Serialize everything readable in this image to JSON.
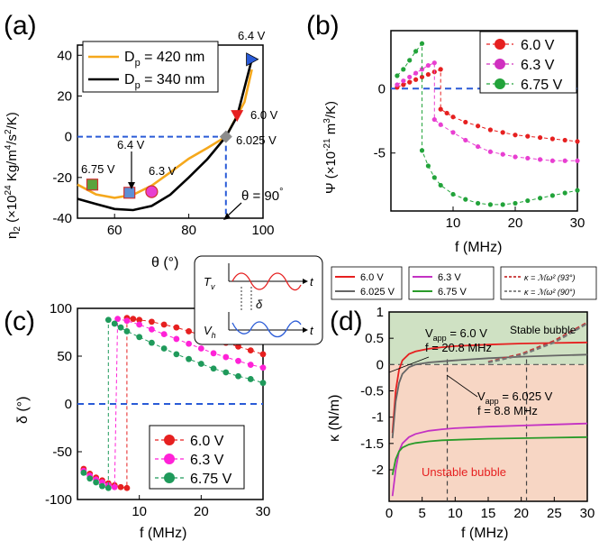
{
  "chart_data": [
    {
      "panel": "(a)",
      "type": "line",
      "xlabel": "θ (°)",
      "ylabel": "η₂ (×10²⁴ Kg/m⁴/s²/K)",
      "xlim": [
        50,
        100
      ],
      "ylim": [
        -40,
        45
      ],
      "xticks": [
        60,
        80,
        100
      ],
      "yticks": [
        -40,
        -20,
        0,
        20,
        40
      ],
      "series": [
        {
          "name": "Dp = 420 nm",
          "color": "#f5a81c",
          "x": [
            50,
            55,
            60,
            65,
            70,
            75,
            80,
            85,
            90,
            95,
            97
          ],
          "y": [
            -23.5,
            -28.3,
            -30.0,
            -28.5,
            -24.0,
            -17.5,
            -10.8,
            -5.5,
            0,
            17,
            33
          ]
        },
        {
          "name": "Dp = 340 nm",
          "color": "#000000",
          "x": [
            50,
            55,
            60,
            65,
            70,
            75,
            80,
            85,
            90,
            93,
            97
          ],
          "y": [
            -30.5,
            -33.0,
            -35.5,
            -36.0,
            -34.0,
            -28.5,
            -20.0,
            -11.0,
            0,
            10,
            38
          ]
        }
      ],
      "markers": [
        {
          "label": "6.75 V",
          "x": 54,
          "y": -23.5,
          "shape": "square",
          "color": "#5ba33c"
        },
        {
          "label": "6.4 V",
          "x": 64,
          "y": -27.5,
          "shape": "square",
          "color": "#5d8fd6"
        },
        {
          "label": "6.3 V",
          "x": 70,
          "y": -27,
          "shape": "circle",
          "color": "#e83fd1"
        },
        {
          "label": "6.025 V",
          "x": 90,
          "y": 0,
          "shape": "diamond",
          "color": "#8c8c8c"
        },
        {
          "label": "6.0 V",
          "x": 93,
          "y": 10,
          "shape": "triangle-down",
          "color": "#e62020"
        },
        {
          "label": "6.4 V",
          "x": 97,
          "y": 38,
          "shape": "triangle-right",
          "color": "#2a5bd7"
        }
      ],
      "annotation": "θ = 90°",
      "guide_labels": [
        "6.4 V",
        "6.0 V",
        "6.025 V",
        "6.4 V",
        "6.75 V",
        "6.3 V"
      ]
    },
    {
      "panel": "(b)",
      "type": "line",
      "xlabel": "f (MHz)",
      "ylabel": "Ψ (×10⁻²¹ m³/K)",
      "xlim": [
        0,
        30
      ],
      "ylim": [
        -9.5,
        4.5
      ],
      "xticks": [
        10,
        20,
        30
      ],
      "yticks": [
        -5,
        0
      ],
      "series": [
        {
          "name": "6.0 V",
          "color": "#e62020",
          "jump_at": 8,
          "low": {
            "x": [
              1,
              2,
              3,
              4,
              5,
              6,
              7,
              8
            ],
            "y": [
              0.1,
              0.3,
              0.5,
              0.7,
              0.9,
              1.1,
              1.3,
              1.5
            ]
          },
          "high": {
            "x": [
              8,
              9,
              10,
              12,
              14,
              16,
              18,
              20,
              22,
              24,
              26,
              28,
              30
            ],
            "y": [
              -1.6,
              -1.9,
              -2.2,
              -2.6,
              -2.9,
              -3.2,
              -3.4,
              -3.6,
              -3.7,
              -3.8,
              -3.9,
              -4.0,
              -4.1
            ]
          }
        },
        {
          "name": "6.3 V",
          "color": "#e83fd1",
          "jump_at": 7,
          "low": {
            "x": [
              1,
              2,
              3,
              4,
              5,
              6,
              7
            ],
            "y": [
              0.3,
              0.6,
              0.9,
              1.2,
              1.5,
              1.8,
              2.0
            ]
          },
          "high": {
            "x": [
              7,
              8,
              10,
              12,
              14,
              16,
              18,
              20,
              22,
              24,
              26,
              28,
              30
            ],
            "y": [
              -2.4,
              -2.8,
              -3.4,
              -4.0,
              -4.5,
              -4.9,
              -5.1,
              -5.3,
              -5.4,
              -5.5,
              -5.6,
              -5.6,
              -5.6
            ]
          }
        },
        {
          "name": "6.75 V",
          "color": "#22a33a",
          "jump_at": 5,
          "low": {
            "x": [
              1,
              2,
              3,
              4,
              5
            ],
            "y": [
              1.0,
              1.5,
              2.2,
              2.9,
              3.5
            ]
          },
          "high": {
            "x": [
              5,
              6,
              7,
              8,
              10,
              12,
              14,
              16,
              18,
              20,
              22,
              24,
              26,
              28,
              30
            ],
            "y": [
              -4.8,
              -6.0,
              -6.9,
              -7.5,
              -8.2,
              -8.6,
              -8.9,
              -9.0,
              -9.0,
              -8.9,
              -8.7,
              -8.5,
              -8.3,
              -8.1,
              -7.9
            ]
          }
        }
      ],
      "zero_line": 0
    },
    {
      "panel": "(c)",
      "type": "line",
      "xlabel": "f (MHz)",
      "ylabel": "δ (°)",
      "xlim": [
        0,
        30
      ],
      "ylim": [
        -100,
        100
      ],
      "xticks": [
        10,
        20,
        30
      ],
      "yticks": [
        -100,
        -50,
        0,
        50,
        100
      ],
      "series": [
        {
          "name": "6.0 V",
          "color": "#e62020",
          "jump_at": 8,
          "low": {
            "x": [
              1,
              2,
              3,
              4,
              5,
              6,
              7,
              8
            ],
            "y": [
              -68,
              -73,
              -77,
              -80,
              -83,
              -85,
              -87,
              -88
            ]
          },
          "high": {
            "x": [
              8,
              9,
              10,
              12,
              14,
              16,
              18,
              20,
              22,
              24,
              26,
              28,
              30
            ],
            "y": [
              90,
              89,
              88,
              86,
              83,
              80,
              76,
              72,
              68,
              64,
              60,
              56,
              52
            ]
          }
        },
        {
          "name": "6.3 V",
          "color": "#ff22d7",
          "jump_at": 6.5,
          "low": {
            "x": [
              1,
              2,
              3,
              4,
              5,
              6
            ],
            "y": [
              -70,
              -75,
              -79,
              -82,
              -85,
              -87
            ]
          },
          "high": {
            "x": [
              6.5,
              8,
              10,
              12,
              14,
              16,
              18,
              20,
              22,
              24,
              26,
              28,
              30
            ],
            "y": [
              89,
              87,
              83,
              78,
              73,
              68,
              63,
              58,
              53,
              49,
              45,
              41,
              38
            ]
          }
        },
        {
          "name": "6.75 V",
          "color": "#1f9a5b",
          "jump_at": 5,
          "low": {
            "x": [
              1,
              2,
              3,
              4,
              5
            ],
            "y": [
              -72,
              -78,
              -82,
              -86,
              -88
            ]
          },
          "high": {
            "x": [
              5,
              6,
              7,
              8,
              10,
              12,
              14,
              16,
              18,
              20,
              22,
              24,
              26,
              28,
              30
            ],
            "y": [
              88,
              84,
              80,
              76,
              70,
              64,
              58,
              52,
              47,
              42,
              37,
              33,
              29,
              26,
              22
            ]
          }
        }
      ],
      "zero_line": 0,
      "inset_labels": {
        "tv": "T",
        "tv_sub": "v",
        "vh": "V",
        "vh_sub": "h",
        "t": "t",
        "delta": "δ"
      }
    },
    {
      "panel": "(d)",
      "type": "line",
      "xlabel": "f (MHz)",
      "ylabel": "κ (N/m)",
      "xlim": [
        0,
        30
      ],
      "ylim": [
        -2.6,
        1.0
      ],
      "xticks": [
        0,
        5,
        10,
        15,
        20,
        25,
        30
      ],
      "yticks": [
        -2,
        -1.5,
        -1,
        -0.5,
        0,
        0.5,
        1
      ],
      "regions": [
        {
          "label": "Stable bubble",
          "from": 0,
          "to": 1.0,
          "color": "#cfe1c3"
        },
        {
          "label": "Unstable bubble",
          "from": -2.6,
          "to": 0,
          "color": "#f7d6c4"
        }
      ],
      "series": [
        {
          "name": "6.0 V",
          "color": "#e62020",
          "x": [
            0.5,
            1,
            1.5,
            2,
            3,
            4,
            6,
            8,
            10,
            15,
            20,
            25,
            30
          ],
          "y": [
            -1.3,
            -0.5,
            -0.1,
            0.08,
            0.2,
            0.25,
            0.3,
            0.33,
            0.35,
            0.38,
            0.4,
            0.41,
            0.42
          ]
        },
        {
          "name": "6.025 V",
          "color": "#666666",
          "x": [
            0.5,
            1,
            1.5,
            2,
            3,
            4,
            6,
            8,
            10,
            15,
            20,
            25,
            30
          ],
          "y": [
            -1.4,
            -0.7,
            -0.35,
            -0.18,
            -0.05,
            0.0,
            0.04,
            0.06,
            0.08,
            0.12,
            0.15,
            0.17,
            0.19
          ]
        },
        {
          "name": "6.3 V",
          "color": "#c332c3",
          "x": [
            0.5,
            1,
            1.5,
            2,
            3,
            4,
            6,
            8,
            10,
            15,
            20,
            25,
            30
          ],
          "y": [
            -2.5,
            -2.0,
            -1.65,
            -1.5,
            -1.38,
            -1.32,
            -1.26,
            -1.23,
            -1.21,
            -1.18,
            -1.16,
            -1.14,
            -1.12
          ]
        },
        {
          "name": "6.75 V",
          "color": "#2a9b2a",
          "x": [
            0.5,
            1,
            1.5,
            2,
            3,
            4,
            6,
            8,
            10,
            15,
            20,
            25,
            30
          ],
          "y": [
            -2.1,
            -1.8,
            -1.65,
            -1.58,
            -1.52,
            -1.49,
            -1.46,
            -1.44,
            -1.43,
            -1.41,
            -1.4,
            -1.39,
            -1.38
          ]
        },
        {
          "name": "κ = ℳω² (93°)",
          "color": "#c83232",
          "dashed": true,
          "x": [
            15,
            20,
            25,
            30
          ],
          "y": [
            0.05,
            0.2,
            0.45,
            0.8
          ]
        },
        {
          "name": "κ = ℳω² (90°)",
          "color": "#777777",
          "dashed": true,
          "x": [
            15,
            20,
            25,
            30
          ],
          "y": [
            0.04,
            0.18,
            0.42,
            0.78
          ]
        }
      ],
      "annotations": [
        {
          "text_line1": "V_app = 6.0 V",
          "text_line2": "f = 20.8 MHz",
          "f": 20.8
        },
        {
          "text_line1": "V_app = 6.025 V",
          "text_line2": "f = 8.8 MHz",
          "f": 8.8
        }
      ],
      "shared_legend": [
        "6.0 V",
        "6.025 V",
        "6.3 V",
        "6.75 V",
        "κ = ℳω² (93°)",
        "κ = ℳω² (90°)"
      ]
    }
  ],
  "labels": {
    "a": "(a)",
    "b": "(b)",
    "c": "(c)",
    "d": "(d)",
    "a_legend1": "D",
    "a_legend1_sub": "p",
    "a_legend1_rest": " = 420 nm",
    "a_legend2": "D",
    "a_legend2_sub": "p",
    "a_legend2_rest": " = 340 nm",
    "a_ylabel_main": "η",
    "a_ylabel_sub": "2",
    "a_ylabel_rest": " (×10",
    "a_ylabel_exp": "24",
    "a_ylabel_unit": " Kg/m",
    "a_ylabel_exp2": "4",
    "a_ylabel_unit2": "/s",
    "a_ylabel_exp3": "2",
    "a_ylabel_unit3": "/K)",
    "a_xlabel": "θ (°)",
    "a_theta": "θ = 90",
    "a_deg": "°",
    "a_64top": "6.4 V",
    "a_60": "6.0 V",
    "a_6025": "6.025 V",
    "a_64mid": "6.4 V",
    "a_675": "6.75 V",
    "a_63": "6.3 V",
    "b_ylabel_main": "Ψ (×10",
    "b_ylabel_exp": "-21",
    "b_ylabel_unit": " m",
    "b_ylabel_exp2": "3",
    "b_ylabel_rest": "/K)",
    "b_xlabel": "f (MHz)",
    "b_leg1": "6.0 V",
    "b_leg2": "6.3 V",
    "b_leg3": "6.75 V",
    "c_ylabel": "δ (°)",
    "c_xlabel": "f (MHz)",
    "c_leg1": "6.0 V",
    "c_leg2": "6.3 V",
    "c_leg3": "6.75 V",
    "d_ylabel": "κ (N/m)",
    "d_xlabel": "f (MHz)",
    "d_stable": "Stable bubble",
    "d_unstable": "Unstable bubble",
    "d_ann1_a": "V",
    "d_ann1_sub": "app",
    "d_ann1_b": " = 6.0 V",
    "d_ann1_c": "f = 20.8 MHz",
    "d_ann2_a": "V",
    "d_ann2_sub": "app",
    "d_ann2_b": " = 6.025 V",
    "d_ann2_c": "f = 8.8 MHz",
    "leg_60": "6.0 V",
    "leg_6025": "6.025 V",
    "leg_63": "6.3 V",
    "leg_675": "6.75 V",
    "leg_k93": "κ = ℳω² (93°)",
    "leg_k90": "κ = ℳω² (90°)"
  }
}
